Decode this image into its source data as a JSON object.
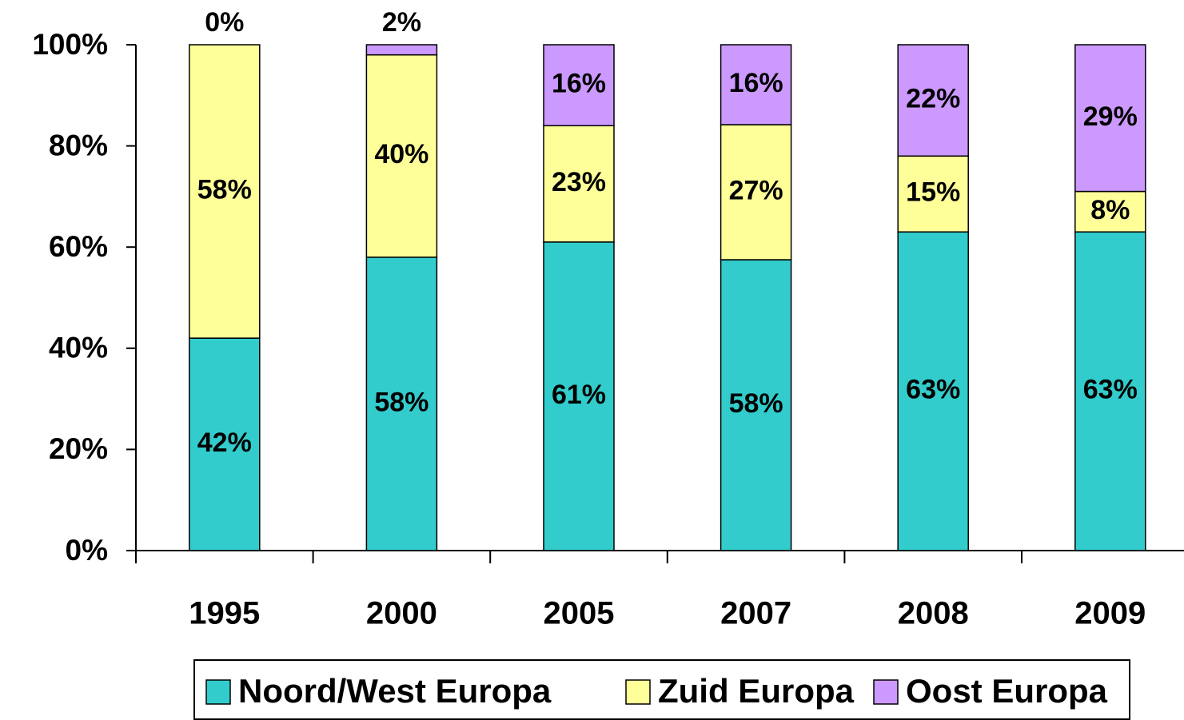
{
  "chart_data": {
    "type": "stacked_bar",
    "categories": [
      "1995",
      "2000",
      "2005",
      "2007",
      "2008",
      "2009"
    ],
    "series": [
      {
        "name": "Noord/West Europa",
        "color": "#33CCCC",
        "values": [
          42,
          58,
          61,
          57.5,
          63,
          63
        ],
        "value_labels": [
          "42%",
          "58%",
          "61%",
          "58%",
          "63%",
          "63%"
        ]
      },
      {
        "name": "Zuid Europa",
        "color": "#FFFF99",
        "values": [
          58,
          40,
          23,
          26.7,
          15,
          8
        ],
        "value_labels": [
          "58%",
          "40%",
          "23%",
          "27%",
          "15%",
          "8%"
        ]
      },
      {
        "name": "Oost Europa",
        "color": "#CC99FF",
        "values": [
          0,
          2,
          16,
          15.8,
          22,
          29
        ],
        "value_labels": [
          "0%",
          "2%",
          "16%",
          "16%",
          "22%",
          "29%"
        ]
      }
    ],
    "ylim": [
      0,
      100
    ],
    "yticks": [
      {
        "value": 0,
        "label": "0%"
      },
      {
        "value": 20,
        "label": "20%"
      },
      {
        "value": 40,
        "label": "40%"
      },
      {
        "value": 60,
        "label": "60%"
      },
      {
        "value": 80,
        "label": "80%"
      },
      {
        "value": 100,
        "label": "100%"
      }
    ],
    "legend": "bottom"
  }
}
